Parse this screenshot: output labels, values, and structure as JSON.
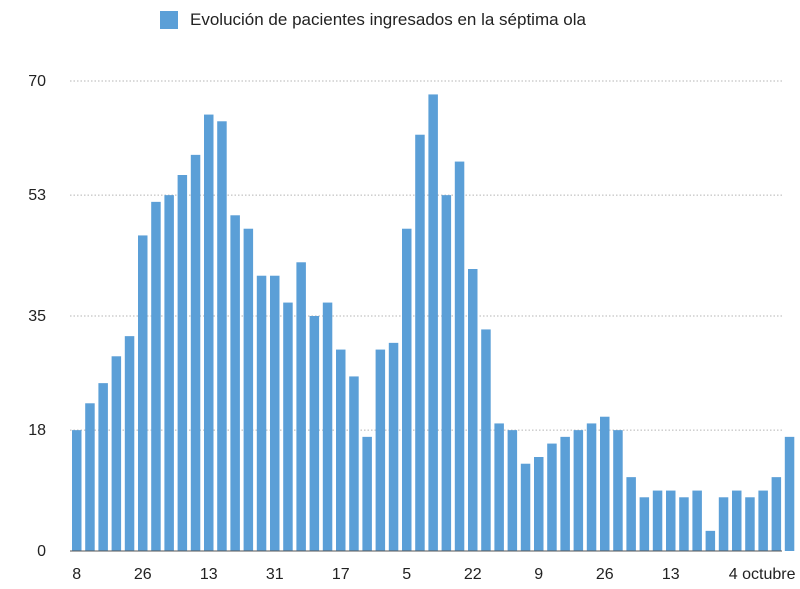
{
  "colors": {
    "bar": "#5b9fd7",
    "grid": "#b5b5b5",
    "axis": "#555555",
    "text": "#222222"
  },
  "chart_data": {
    "type": "bar",
    "title": "",
    "xlabel": "",
    "ylabel": "",
    "legend": {
      "position": "top",
      "entries": [
        "Evolución de pacientes ingresados en la séptima ola"
      ]
    },
    "grid": true,
    "ylim": [
      0,
      70
    ],
    "yticks": [
      0,
      18,
      35,
      53,
      70
    ],
    "xtick_labels": [
      {
        "index": 0,
        "label": "8"
      },
      {
        "index": 5,
        "label": "26"
      },
      {
        "index": 10,
        "label": "13"
      },
      {
        "index": 15,
        "label": "31"
      },
      {
        "index": 20,
        "label": "17"
      },
      {
        "index": 25,
        "label": "5"
      },
      {
        "index": 30,
        "label": "22"
      },
      {
        "index": 35,
        "label": "9"
      },
      {
        "index": 40,
        "label": "26"
      },
      {
        "index": 45,
        "label": "13"
      },
      {
        "index": 50,
        "label": "4 octubre"
      }
    ],
    "series": [
      {
        "name": "Evolución de pacientes ingresados en la séptima ola",
        "values": [
          18,
          22,
          25,
          29,
          32,
          47,
          52,
          53,
          56,
          59,
          65,
          64,
          50,
          48,
          41,
          41,
          37,
          43,
          35,
          37,
          30,
          26,
          17,
          30,
          31,
          48,
          62,
          68,
          53,
          58,
          42,
          33,
          19,
          18,
          13,
          14,
          16,
          17,
          18,
          19,
          20,
          18,
          11,
          8,
          9,
          9,
          8,
          9,
          3,
          8,
          9,
          8,
          9,
          11,
          17
        ]
      }
    ]
  }
}
